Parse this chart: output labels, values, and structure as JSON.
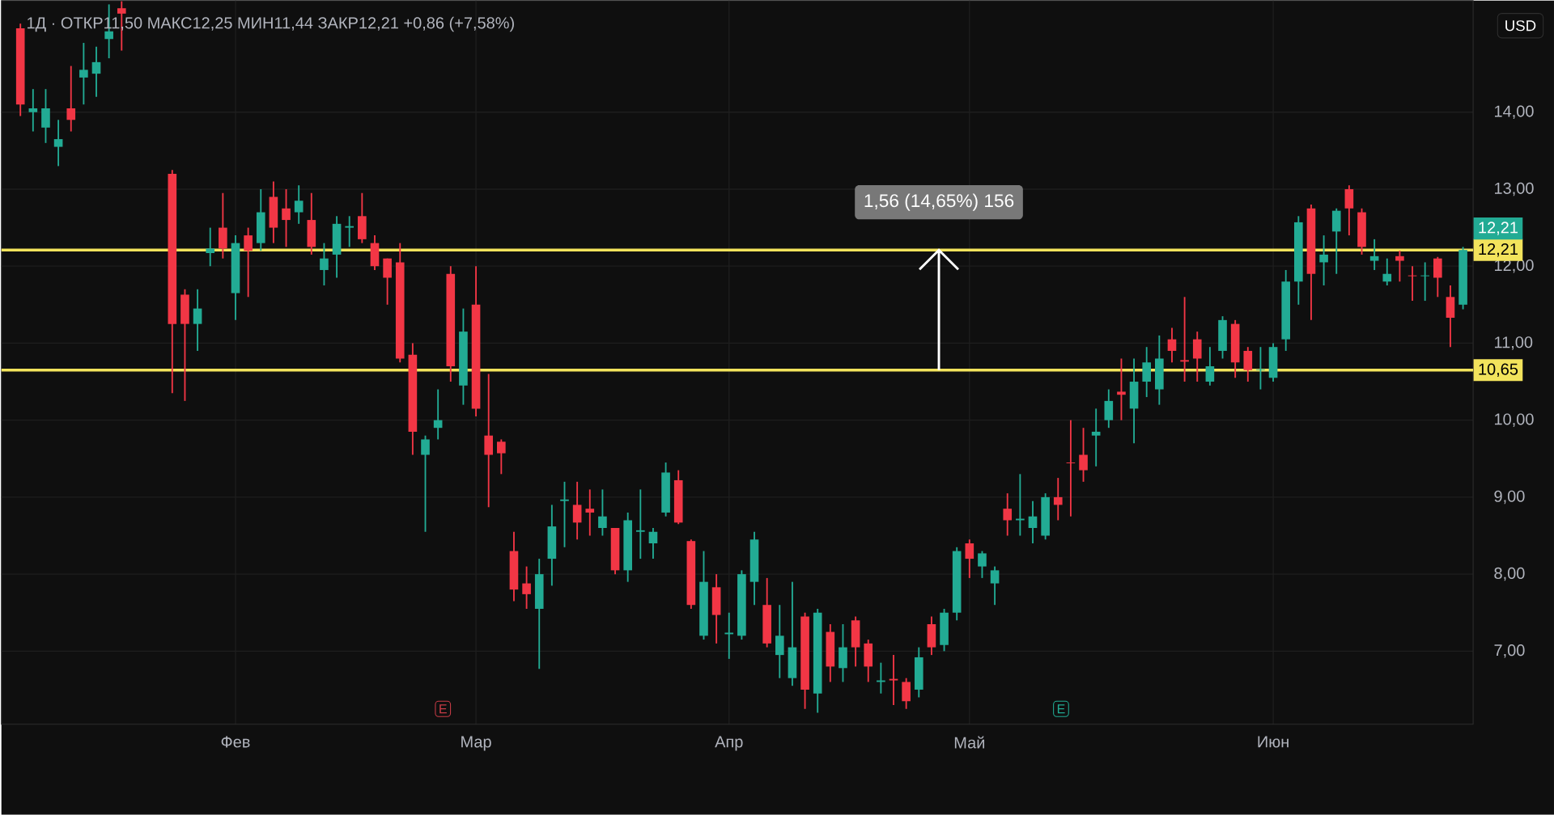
{
  "chart_data": {
    "type": "candlestick",
    "title": "1Д · ОТКР11,50 МАКС12,25 МИН11,44 ЗАКР12,21 +0,86 (+7,58%)",
    "categories": [
      null,
      null,
      null,
      null,
      null,
      null,
      null,
      null,
      null,
      null,
      null,
      null,
      null,
      null,
      null,
      null,
      null,
      "Фев",
      null,
      null,
      null,
      null,
      null,
      null,
      null,
      null,
      null,
      null,
      null,
      null,
      null,
      null,
      null,
      null,
      null,
      null,
      "Мар",
      null,
      null,
      null,
      null,
      null,
      null,
      null,
      null,
      null,
      null,
      null,
      null,
      null,
      null,
      null,
      null,
      null,
      null,
      null,
      "Апр",
      null,
      null,
      null,
      null,
      null,
      null,
      null,
      null,
      null,
      null,
      null,
      null,
      null,
      null,
      null,
      null,
      null,
      null,
      "Май",
      null,
      null,
      null,
      null,
      null,
      null,
      null,
      null,
      null,
      null,
      null,
      null,
      null,
      null,
      null,
      null,
      null,
      null,
      null,
      null,
      null,
      null,
      null,
      "Июн",
      null,
      null,
      null,
      null,
      null,
      null,
      null,
      null,
      null,
      null,
      null,
      null,
      null,
      null,
      null
    ],
    "ohlc": [
      [
        15.09,
        15.15,
        13.95,
        14.1
      ],
      [
        14.0,
        14.3,
        13.75,
        14.05
      ],
      [
        13.8,
        14.3,
        13.6,
        14.05
      ],
      [
        13.55,
        13.9,
        13.3,
        13.65
      ],
      [
        14.05,
        14.6,
        13.75,
        13.9
      ],
      [
        14.45,
        14.9,
        14.1,
        14.55
      ],
      [
        14.5,
        14.85,
        14.2,
        14.65
      ],
      [
        14.95,
        15.4,
        14.7,
        15.05
      ],
      [
        15.35,
        15.44,
        14.8,
        15.28
      ],
      null,
      null,
      null,
      [
        13.2,
        13.25,
        10.35,
        11.25
      ],
      [
        11.63,
        11.7,
        10.25,
        11.25
      ],
      [
        11.25,
        11.7,
        10.9,
        11.45
      ],
      [
        12.17,
        12.5,
        12.0,
        12.23
      ],
      [
        12.5,
        12.95,
        12.1,
        12.23
      ],
      [
        11.65,
        12.4,
        11.3,
        12.3
      ],
      [
        12.4,
        12.5,
        11.6,
        12.2
      ],
      [
        12.3,
        13.0,
        12.2,
        12.7
      ],
      [
        12.9,
        13.1,
        12.3,
        12.5
      ],
      [
        12.75,
        13.0,
        12.25,
        12.6
      ],
      [
        12.7,
        13.05,
        12.55,
        12.85
      ],
      [
        12.6,
        12.95,
        12.15,
        12.25
      ],
      [
        11.95,
        12.3,
        11.75,
        12.1
      ],
      [
        12.15,
        12.65,
        11.85,
        12.55
      ],
      [
        12.5,
        12.65,
        12.25,
        12.52
      ],
      [
        12.65,
        12.95,
        12.3,
        12.35
      ],
      [
        12.3,
        12.4,
        11.95,
        12.0
      ],
      [
        12.1,
        12.1,
        11.5,
        11.85
      ],
      [
        12.05,
        12.3,
        10.75,
        10.8
      ],
      [
        10.85,
        11.0,
        9.55,
        9.85
      ],
      [
        9.55,
        9.8,
        8.55,
        9.75
      ],
      [
        9.9,
        10.4,
        9.75,
        10.0
      ],
      [
        11.9,
        12.0,
        10.5,
        10.7
      ],
      [
        10.45,
        11.45,
        10.2,
        11.15
      ],
      [
        11.5,
        12.0,
        10.05,
        10.15
      ],
      [
        9.8,
        10.6,
        8.87,
        9.55
      ],
      [
        9.72,
        9.75,
        9.3,
        9.57
      ],
      [
        8.3,
        8.55,
        7.65,
        7.8
      ],
      [
        7.88,
        8.1,
        7.55,
        7.74
      ],
      [
        7.55,
        8.2,
        6.77,
        8.0
      ],
      [
        8.2,
        8.9,
        7.85,
        8.62
      ],
      [
        8.95,
        9.2,
        8.35,
        8.97
      ],
      [
        8.9,
        9.2,
        8.45,
        8.67
      ],
      [
        8.85,
        9.1,
        8.5,
        8.8
      ],
      [
        8.6,
        9.1,
        8.5,
        8.75
      ],
      [
        8.6,
        8.6,
        8.0,
        8.05
      ],
      [
        8.05,
        8.8,
        7.9,
        8.7
      ],
      [
        8.55,
        9.1,
        8.2,
        8.57
      ],
      [
        8.4,
        8.6,
        8.2,
        8.55
      ],
      [
        8.8,
        9.45,
        8.75,
        9.32
      ],
      [
        9.22,
        9.35,
        8.65,
        8.67
      ],
      [
        8.43,
        8.45,
        7.55,
        7.6
      ],
      [
        7.2,
        8.3,
        7.15,
        7.9
      ],
      [
        7.83,
        8.0,
        7.1,
        7.47
      ],
      [
        7.22,
        7.5,
        6.9,
        7.24
      ],
      [
        7.2,
        8.05,
        7.15,
        8.0
      ],
      [
        7.9,
        8.55,
        7.6,
        8.45
      ],
      [
        7.6,
        7.95,
        7.05,
        7.1
      ],
      [
        6.95,
        7.6,
        6.65,
        7.2
      ],
      [
        6.65,
        7.9,
        6.55,
        7.05
      ],
      [
        7.45,
        7.5,
        6.25,
        6.5
      ],
      [
        6.45,
        7.55,
        6.2,
        7.5
      ],
      [
        7.25,
        7.35,
        6.6,
        6.8
      ],
      [
        6.78,
        7.35,
        6.6,
        7.05
      ],
      [
        7.4,
        7.45,
        6.8,
        7.05
      ],
      [
        7.1,
        7.15,
        6.6,
        6.8
      ],
      [
        6.6,
        6.85,
        6.45,
        6.62
      ],
      [
        6.64,
        6.95,
        6.3,
        6.62
      ],
      [
        6.6,
        6.65,
        6.25,
        6.35
      ],
      [
        6.5,
        7.05,
        6.4,
        6.92
      ],
      [
        7.35,
        7.45,
        6.95,
        7.05
      ],
      [
        7.08,
        7.55,
        7.0,
        7.5
      ],
      [
        7.5,
        8.35,
        7.4,
        8.3
      ],
      [
        8.4,
        8.45,
        7.95,
        8.2
      ],
      [
        8.1,
        8.3,
        7.95,
        8.27
      ],
      [
        7.88,
        8.1,
        7.6,
        8.05
      ],
      [
        8.85,
        9.05,
        8.5,
        8.7
      ],
      [
        8.7,
        9.3,
        8.5,
        8.72
      ],
      [
        8.6,
        8.95,
        8.4,
        8.75
      ],
      [
        8.5,
        9.05,
        8.45,
        9.0
      ],
      [
        9.0,
        9.25,
        8.7,
        8.9
      ],
      [
        9.45,
        10.0,
        8.75,
        9.44
      ],
      [
        9.55,
        9.9,
        9.2,
        9.35
      ],
      [
        9.8,
        10.15,
        9.4,
        9.85
      ],
      [
        10.0,
        10.4,
        9.9,
        10.25
      ],
      [
        10.37,
        10.8,
        10.0,
        10.33
      ],
      [
        10.15,
        10.8,
        9.7,
        10.5
      ],
      [
        10.5,
        10.95,
        10.3,
        10.75
      ],
      [
        10.4,
        11.1,
        10.2,
        10.8
      ],
      [
        11.05,
        11.2,
        10.75,
        10.9
      ],
      [
        10.78,
        11.6,
        10.5,
        10.76
      ],
      [
        11.05,
        11.15,
        10.5,
        10.8
      ],
      [
        10.5,
        10.95,
        10.45,
        10.7
      ],
      [
        10.9,
        11.35,
        10.8,
        11.3
      ],
      [
        11.25,
        11.3,
        10.55,
        10.75
      ],
      [
        10.9,
        10.95,
        10.5,
        10.65
      ],
      [
        10.65,
        10.95,
        10.4,
        10.66
      ],
      [
        10.55,
        11.0,
        10.5,
        10.95
      ],
      [
        11.05,
        11.95,
        10.9,
        11.8
      ],
      [
        11.8,
        12.65,
        11.5,
        12.57
      ],
      [
        12.75,
        12.8,
        11.3,
        11.9
      ],
      [
        12.05,
        12.4,
        11.75,
        12.15
      ],
      [
        12.45,
        12.75,
        11.9,
        12.72
      ],
      [
        13.0,
        13.05,
        12.4,
        12.75
      ],
      [
        12.7,
        12.75,
        12.15,
        12.25
      ],
      [
        12.07,
        12.35,
        11.95,
        12.13
      ],
      [
        11.8,
        12.1,
        11.75,
        11.9
      ],
      [
        12.13,
        12.2,
        11.8,
        12.07
      ],
      [
        11.88,
        12.0,
        11.55,
        11.87
      ],
      [
        11.87,
        12.05,
        11.55,
        11.88
      ],
      [
        12.1,
        12.12,
        11.6,
        11.85
      ],
      [
        11.6,
        11.75,
        10.95,
        11.33
      ],
      [
        11.5,
        12.25,
        11.44,
        12.21
      ]
    ],
    "colors": [
      "#f23645",
      "#22ab94",
      "#22ab94",
      "#22ab94",
      "#f23645",
      "#22ab94",
      "#22ab94",
      "#22ab94",
      "#f23645",
      null,
      null,
      null,
      "#f23645",
      "#f23645",
      "#22ab94",
      "#22ab94",
      "#f23645",
      "#22ab94",
      "#f23645",
      "#22ab94",
      "#f23645",
      "#f23645",
      "#22ab94",
      "#f23645",
      "#22ab94",
      "#22ab94",
      "#22ab94",
      "#f23645",
      "#f23645",
      "#f23645",
      "#f23645",
      "#f23645",
      "#22ab94",
      "#22ab94",
      "#f23645",
      "#22ab94",
      "#f23645",
      "#f23645",
      "#f23645",
      "#f23645",
      "#f23645",
      "#22ab94",
      "#22ab94",
      "#22ab94",
      "#f23645",
      "#f23645",
      "#22ab94",
      "#f23645",
      "#22ab94",
      "#22ab94",
      "#22ab94",
      "#22ab94",
      "#f23645",
      "#f23645",
      "#22ab94",
      "#f23645",
      "#22ab94",
      "#22ab94",
      "#22ab94",
      "#f23645",
      "#22ab94",
      "#22ab94",
      "#f23645",
      "#22ab94",
      "#f23645",
      "#22ab94",
      "#f23645",
      "#f23645",
      "#22ab94",
      "#f23645",
      "#f23645",
      "#22ab94",
      "#f23645",
      "#22ab94",
      "#22ab94",
      "#f23645",
      "#22ab94",
      "#22ab94",
      "#f23645",
      "#22ab94",
      "#22ab94",
      "#22ab94",
      "#f23645",
      "#f23645",
      "#f23645",
      "#22ab94",
      "#22ab94",
      "#f23645",
      "#22ab94",
      "#22ab94",
      "#22ab94",
      "#f23645",
      "#f23645",
      "#f23645",
      "#22ab94",
      "#22ab94",
      "#f23645",
      "#f23645",
      "#22ab94",
      "#22ab94",
      "#22ab94",
      "#22ab94",
      "#f23645",
      "#22ab94",
      "#22ab94",
      "#f23645",
      "#f23645",
      "#22ab94",
      "#22ab94",
      "#f23645",
      "#f23645",
      "#22ab94",
      "#f23645",
      "#f23645",
      "#22ab94"
    ],
    "ylim": [
      6.05,
      15.45
    ],
    "yticks": [
      {
        "value": 7,
        "label": "7,00"
      },
      {
        "value": 8,
        "label": "8,00"
      },
      {
        "value": 9,
        "label": "9,00"
      },
      {
        "value": 10,
        "label": "10,00"
      },
      {
        "value": 11,
        "label": "11,00"
      },
      {
        "value": 12,
        "label": "12,00"
      },
      {
        "value": 13,
        "label": "13,00"
      },
      {
        "value": 14,
        "label": "14,00"
      }
    ],
    "grid": true,
    "ref_lines": [
      {
        "axis": "y",
        "value": 12.21,
        "label": "12,21",
        "color": "#f2e35c"
      },
      {
        "axis": "y",
        "value": 10.65,
        "label": "10,65",
        "color": "#f2e35c"
      }
    ],
    "annotations": [
      {
        "text": "12,21",
        "y": 12.21
      },
      "1,56 (14,65%) 156",
      "USD",
      "E",
      "E"
    ]
  }
}
